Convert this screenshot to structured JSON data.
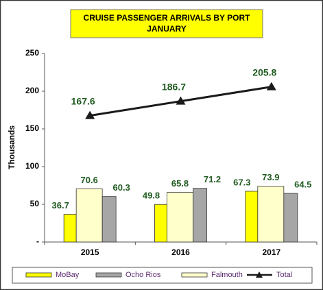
{
  "chart_data": {
    "type": "bar",
    "title": [
      "CRUISE  PASSENGER ARRIVALS BY PORT",
      "JANUARY"
    ],
    "y_label": "Thousands",
    "categories": [
      "2015",
      "2016",
      "2017"
    ],
    "series": [
      {
        "name": "MoBay",
        "color": "#ffff00",
        "values": [
          36.7,
          49.8,
          67.3
        ]
      },
      {
        "name": "Ocho Rios",
        "color": "#a6a6a6",
        "values": [
          60.3,
          71.2,
          64.5
        ]
      },
      {
        "name": "Falmouth",
        "color": "#ffffcc",
        "values": [
          70.6,
          65.8,
          73.9
        ]
      },
      {
        "name": "Total",
        "type": "line",
        "color": "#1a1a1a",
        "values": [
          167.6,
          186.7,
          205.8
        ]
      }
    ],
    "ylim": [
      0,
      250
    ],
    "yticks": [
      {
        "value": 0,
        "label": "-"
      },
      50,
      100,
      150,
      200,
      250
    ],
    "grid": false,
    "legend": "bottom"
  }
}
